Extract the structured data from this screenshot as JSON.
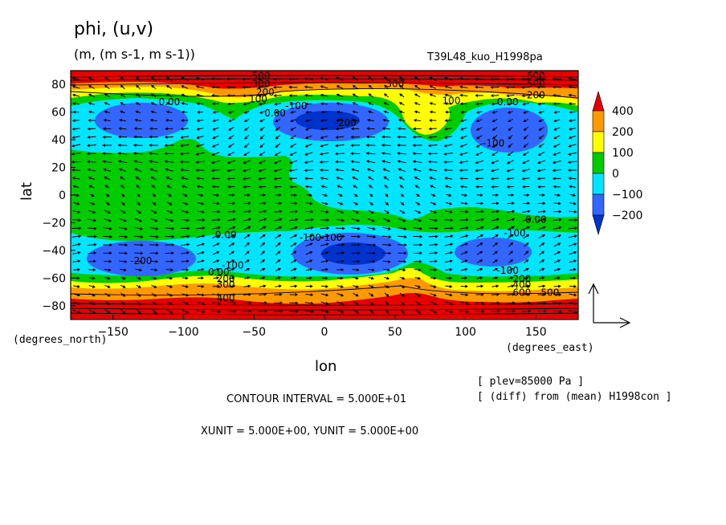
{
  "header": {
    "title": "phi, (u,v)",
    "units": "(m, (m s-1, m s-1))",
    "run_name": "T39L48_kuo_H1998pa"
  },
  "footer": {
    "lon_label": "lon",
    "lat_label": "lat",
    "x_unit_label": "(degrees_east)",
    "y_unit_label": "(degrees_north)",
    "contour_interval": "CONTOUR INTERVAL = 5.000E+01",
    "vector_units": "XUNIT = 5.000E+00, YUNIT = 5.000E+00",
    "plev_note": "[ plev=85000 Pa ]",
    "diff_note": "[ (diff) from (mean) H1998con ]"
  },
  "chart_data": {
    "type": "heatmap",
    "title": "phi, (u,v)",
    "xlabel": "lon",
    "ylabel": "lat",
    "xlim": [
      -180,
      180
    ],
    "ylim": [
      -90,
      90
    ],
    "xticks": [
      -150,
      -100,
      -50,
      0,
      50,
      100,
      150
    ],
    "yticks": [
      80,
      60,
      40,
      20,
      0,
      -20,
      -40,
      -60,
      -80
    ],
    "colorbar": {
      "levels": [
        400,
        200,
        100,
        0,
        -100,
        -200
      ],
      "colors": [
        "#e60000",
        "#ff9900",
        "#ffff00",
        "#00cc00",
        "#00e5ff",
        "#3366ff",
        "#0033cc"
      ]
    },
    "contour_labels": [
      {
        "text": "500",
        "lon": -45,
        "lat": 84
      },
      {
        "text": "300",
        "lon": -45,
        "lat": 78
      },
      {
        "text": "200",
        "lon": -42,
        "lat": 72
      },
      {
        "text": "100",
        "lon": -47,
        "lat": 67
      },
      {
        "text": "0.00",
        "lon": -110,
        "lat": 65
      },
      {
        "text": "0.00",
        "lon": -35,
        "lat": 57
      },
      {
        "text": "-100",
        "lon": -20,
        "lat": 62
      },
      {
        "text": "-200",
        "lon": 15,
        "lat": 50
      },
      {
        "text": "300",
        "lon": 50,
        "lat": 78
      },
      {
        "text": "100",
        "lon": 90,
        "lat": 66
      },
      {
        "text": "0.00",
        "lon": 130,
        "lat": 65
      },
      {
        "text": "600",
        "lon": 150,
        "lat": 84
      },
      {
        "text": "500",
        "lon": 150,
        "lat": 78
      },
      {
        "text": "200",
        "lon": 150,
        "lat": 70
      },
      {
        "text": "-100",
        "lon": 120,
        "lat": 35
      },
      {
        "text": "0.00",
        "lon": 150,
        "lat": -20
      },
      {
        "text": "-100",
        "lon": 135,
        "lat": -30
      },
      {
        "text": "-100",
        "lon": -10,
        "lat": -33
      },
      {
        "text": "-100",
        "lon": 5,
        "lat": -33
      },
      {
        "text": "0.00",
        "lon": -70,
        "lat": -31
      },
      {
        "text": "-200",
        "lon": -130,
        "lat": -50
      },
      {
        "text": "-100",
        "lon": -65,
        "lat": -53
      },
      {
        "text": "0.00",
        "lon": -75,
        "lat": -58
      },
      {
        "text": "200",
        "lon": -70,
        "lat": -63
      },
      {
        "text": "300",
        "lon": -70,
        "lat": -67
      },
      {
        "text": "400",
        "lon": -70,
        "lat": -77
      },
      {
        "text": "-100",
        "lon": 130,
        "lat": -57
      },
      {
        "text": "200",
        "lon": 140,
        "lat": -63
      },
      {
        "text": "400",
        "lon": 140,
        "lat": -67
      },
      {
        "text": "600",
        "lon": 140,
        "lat": -73
      },
      {
        "text": "500",
        "lon": 160,
        "lat": -73
      }
    ]
  }
}
